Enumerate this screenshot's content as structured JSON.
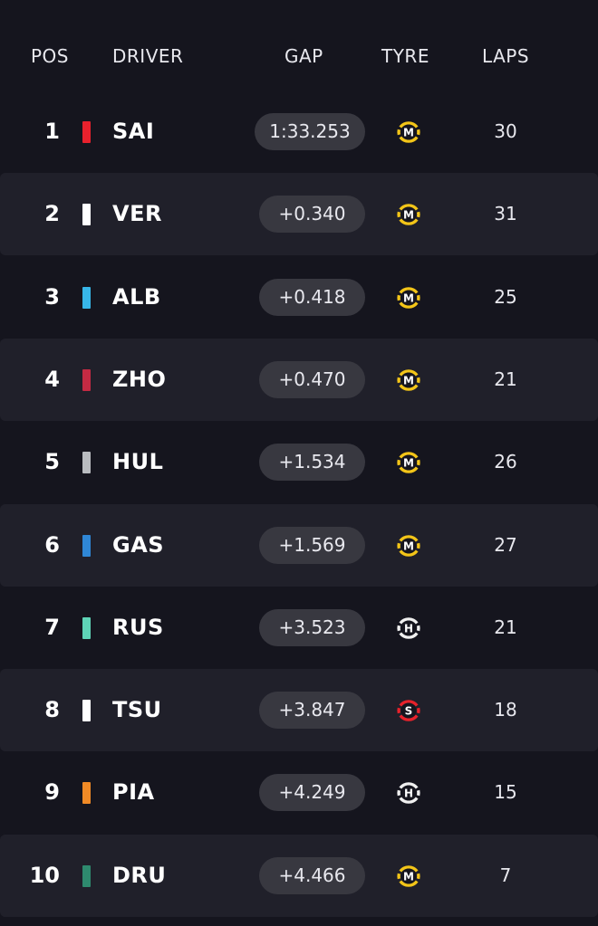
{
  "headers": {
    "pos": "POS",
    "driver": "DRIVER",
    "gap": "GAP",
    "tyre": "TYRE",
    "laps": "LAPS"
  },
  "tyre_colors": {
    "M": "#f3c518",
    "H": "#f0f0f0",
    "S": "#e8222b"
  },
  "rows": [
    {
      "pos": "1",
      "driver": "SAI",
      "team_color": "#e8212d",
      "gap": "1:33.253",
      "tyre": "M",
      "tyre_icon": "medium-tyre-icon",
      "laps": "30"
    },
    {
      "pos": "2",
      "driver": "VER",
      "team_color": "#ffffff",
      "gap": "+0.340",
      "tyre": "M",
      "tyre_icon": "medium-tyre-icon",
      "laps": "31"
    },
    {
      "pos": "3",
      "driver": "ALB",
      "team_color": "#37b6e8",
      "gap": "+0.418",
      "tyre": "M",
      "tyre_icon": "medium-tyre-icon",
      "laps": "25"
    },
    {
      "pos": "4",
      "driver": "ZHO",
      "team_color": "#c42a43",
      "gap": "+0.470",
      "tyre": "M",
      "tyre_icon": "medium-tyre-icon",
      "laps": "21"
    },
    {
      "pos": "5",
      "driver": "HUL",
      "team_color": "#b9bcc0",
      "gap": "+1.534",
      "tyre": "M",
      "tyre_icon": "medium-tyre-icon",
      "laps": "26"
    },
    {
      "pos": "6",
      "driver": "GAS",
      "team_color": "#2f87d6",
      "gap": "+1.569",
      "tyre": "M",
      "tyre_icon": "medium-tyre-icon",
      "laps": "27"
    },
    {
      "pos": "7",
      "driver": "RUS",
      "team_color": "#5ed3b6",
      "gap": "+3.523",
      "tyre": "H",
      "tyre_icon": "hard-tyre-icon",
      "laps": "21"
    },
    {
      "pos": "8",
      "driver": "TSU",
      "team_color": "#ffffff",
      "gap": "+3.847",
      "tyre": "S",
      "tyre_icon": "soft-tyre-icon",
      "laps": "18"
    },
    {
      "pos": "9",
      "driver": "PIA",
      "team_color": "#f08a26",
      "gap": "+4.249",
      "tyre": "H",
      "tyre_icon": "hard-tyre-icon",
      "laps": "15"
    },
    {
      "pos": "10",
      "driver": "DRU",
      "team_color": "#2e8a6e",
      "gap": "+4.466",
      "tyre": "M",
      "tyre_icon": "medium-tyre-icon",
      "laps": "7"
    }
  ]
}
